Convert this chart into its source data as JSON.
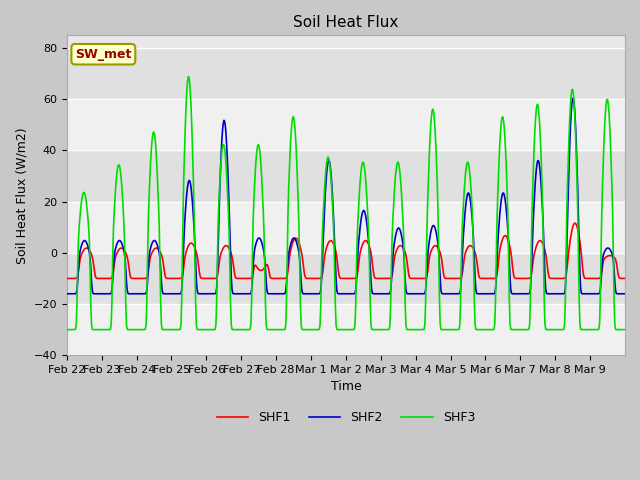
{
  "title": "Soil Heat Flux",
  "xlabel": "Time",
  "ylabel": "Soil Heat Flux (W/m2)",
  "ylim": [
    -40,
    85
  ],
  "yticks": [
    -40,
    -20,
    0,
    20,
    40,
    60,
    80
  ],
  "colors": {
    "SHF1": "#ff0000",
    "SHF2": "#0000cc",
    "SHF3": "#00dd00"
  },
  "fig_bg": "#c8c8c8",
  "ax_bg": "#e8e8e8",
  "grid_color": "#ffffff",
  "annotation_text": "SW_met",
  "annotation_fg": "#990000",
  "annotation_bg": "#ffffcc",
  "annotation_edge": "#999900",
  "x_tick_labels": [
    "Feb 22",
    "Feb 23",
    "Feb 24",
    "Feb 25",
    "Feb 26",
    "Feb 27",
    "Feb 28",
    "Mar 1",
    "Mar 2",
    "Mar 3",
    "Mar 4",
    "Mar 5",
    "Mar 6",
    "Mar 7",
    "Mar 8",
    "Mar 9"
  ],
  "num_days": 16,
  "shf3_day_amplitudes": [
    24,
    35,
    48,
    70,
    43,
    43,
    54,
    38,
    36,
    36,
    57,
    36,
    54,
    59,
    65,
    61
  ],
  "shf2_day_amplitudes": [
    8,
    8,
    8,
    32,
    56,
    9,
    9,
    40,
    20,
    13,
    14,
    27,
    27,
    40,
    65,
    5
  ],
  "shf1_day_amplitudes": [
    5,
    5,
    5,
    7,
    6,
    -4,
    9,
    8,
    8,
    6,
    6,
    6,
    10,
    8,
    15,
    2
  ],
  "shf3_night_base": -30,
  "shf2_night_base": -16,
  "shf1_night_base": -10,
  "linewidth": 1.2
}
